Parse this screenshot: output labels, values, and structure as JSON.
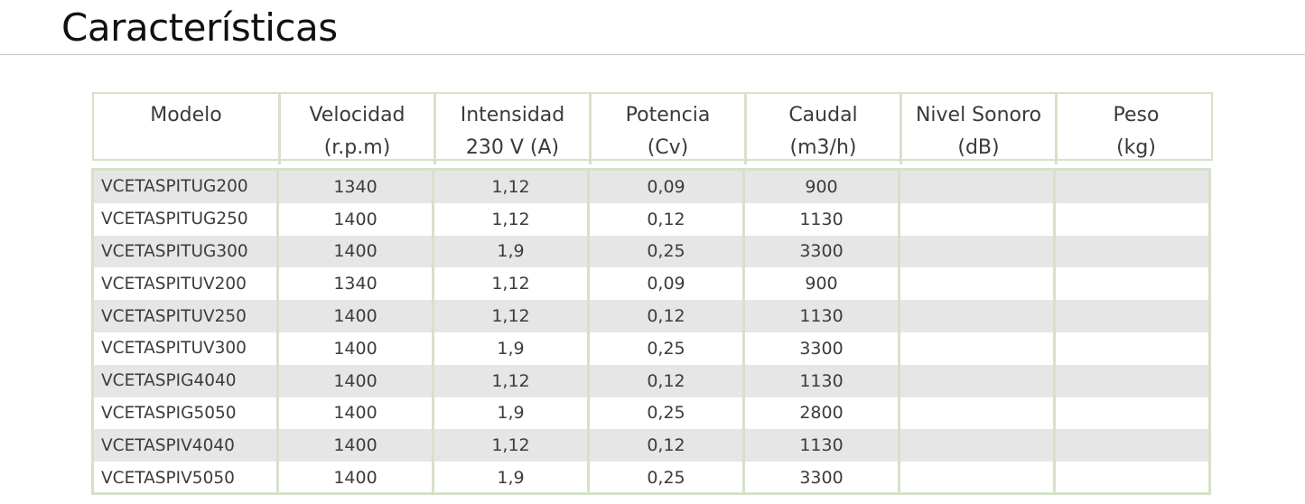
{
  "page": {
    "title": "Características"
  },
  "table": {
    "headers": [
      {
        "line1": "Modelo",
        "line2": ""
      },
      {
        "line1": "Velocidad",
        "line2": "(r.p.m)"
      },
      {
        "line1": "Intensidad",
        "line2": "230 V (A)"
      },
      {
        "line1": "Potencia",
        "line2": "(Cv)"
      },
      {
        "line1": "Caudal",
        "line2": "(m3/h)"
      },
      {
        "line1": "Nivel Sonoro",
        "line2": "(dB)"
      },
      {
        "line1": "Peso",
        "line2": "(kg)"
      }
    ],
    "rows": [
      [
        "VCETASPITUG200",
        "1340",
        "1,12",
        "0,09",
        "900",
        "",
        ""
      ],
      [
        "VCETASPITUG250",
        "1400",
        "1,12",
        "0,12",
        "1130",
        "",
        ""
      ],
      [
        "VCETASPITUG300",
        "1400",
        "1,9",
        "0,25",
        "3300",
        "",
        ""
      ],
      [
        "VCETASPITUV200",
        "1340",
        "1,12",
        "0,09",
        "900",
        "",
        ""
      ],
      [
        "VCETASPITUV250",
        "1400",
        "1,12",
        "0,12",
        "1130",
        "",
        ""
      ],
      [
        "VCETASPITUV300",
        "1400",
        "1,9",
        "0,25",
        "3300",
        "",
        ""
      ],
      [
        "VCETASPIG4040",
        "1400",
        "1,12",
        "0,12",
        "1130",
        "",
        ""
      ],
      [
        "VCETASPIG5050",
        "1400",
        "1,9",
        "0,25",
        "2800",
        "",
        ""
      ],
      [
        "VCETASPIV4040",
        "1400",
        "1,12",
        "0,12",
        "1130",
        "",
        ""
      ],
      [
        "VCETASPIV5050",
        "1400",
        "1,9",
        "0,25",
        "3300",
        "",
        ""
      ]
    ],
    "colors": {
      "border": "#d6e1cc",
      "stripe": "#e6e6e6"
    }
  }
}
